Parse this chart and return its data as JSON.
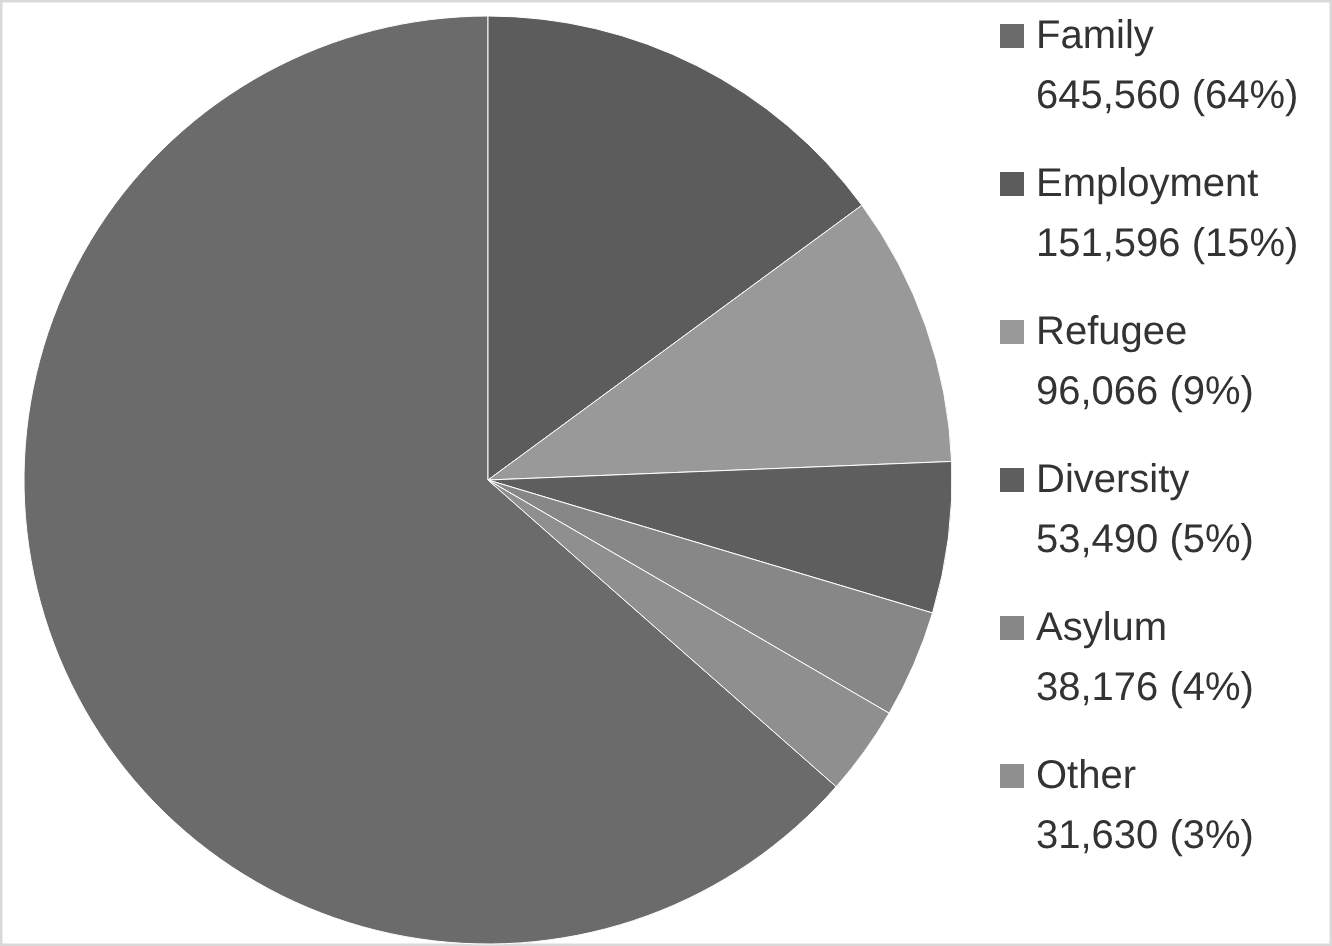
{
  "chart_data": {
    "type": "pie",
    "categories": [
      "Family",
      "Employment",
      "Refugee",
      "Diversity",
      "Asylum",
      "Other"
    ],
    "values": [
      645560,
      151596,
      96066,
      53490,
      38176,
      31630
    ],
    "value_labels": [
      "645,560 (64%)",
      "151,596 (15%)",
      "96,066 (9%)",
      "53,490 (5%)",
      "38,176 (4%)",
      "31,630 (3%)"
    ],
    "colors": [
      "#6b6b6b",
      "#5c5c5c",
      "#999999",
      "#5e5e5e",
      "#878787",
      "#8f8f8f"
    ],
    "legend": "right"
  }
}
